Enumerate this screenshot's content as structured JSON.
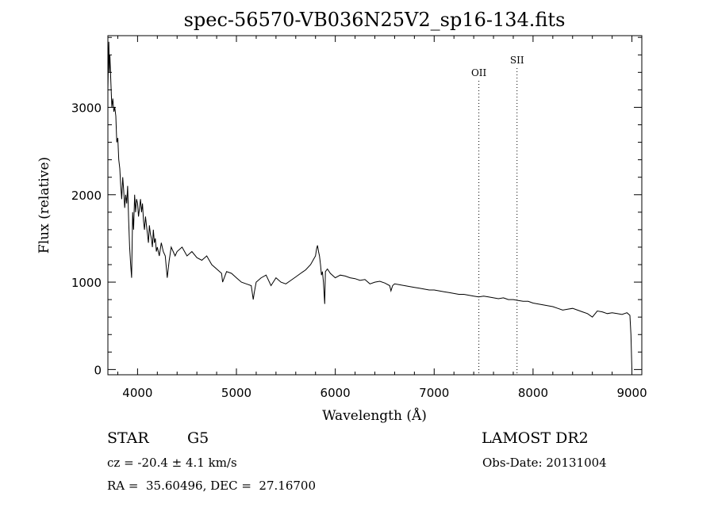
{
  "chart_data": {
    "type": "line",
    "title": "spec-56570-VB036N25V2_sp16-134.fits",
    "xlabel": "Wavelength (Å)",
    "ylabel": "Flux (relative)",
    "xlim": [
      3700,
      9100
    ],
    "ylim": [
      -60,
      3820
    ],
    "x_ticks": [
      4000,
      5000,
      6000,
      7000,
      8000,
      9000
    ],
    "y_ticks": [
      0,
      1000,
      2000,
      3000
    ],
    "grid": false,
    "series": [
      {
        "x": [
          3700,
          3705,
          3710,
          3715,
          3720,
          3730,
          3740,
          3750,
          3760,
          3770,
          3780,
          3790,
          3800,
          3810,
          3820,
          3830,
          3840,
          3850,
          3860,
          3870,
          3880,
          3890,
          3900,
          3910,
          3920,
          3930,
          3940,
          3950,
          3960,
          3970,
          3980,
          3990,
          4000,
          4010,
          4020,
          4030,
          4040,
          4050,
          4060,
          4070,
          4080,
          4090,
          4100,
          4110,
          4120,
          4130,
          4140,
          4150,
          4160,
          4170,
          4180,
          4190,
          4200,
          4220,
          4240,
          4260,
          4280,
          4300,
          4320,
          4340,
          4360,
          4380,
          4400,
          4450,
          4500,
          4550,
          4600,
          4650,
          4700,
          4750,
          4800,
          4850,
          4860,
          4900,
          4950,
          5000,
          5050,
          5100,
          5150,
          5170,
          5180,
          5200,
          5250,
          5300,
          5350,
          5400,
          5450,
          5500,
          5550,
          5600,
          5650,
          5700,
          5750,
          5780,
          5800,
          5810,
          5820,
          5830,
          5840,
          5850,
          5860,
          5870,
          5880,
          5893,
          5900,
          5920,
          5950,
          6000,
          6050,
          6100,
          6150,
          6200,
          6250,
          6300,
          6350,
          6400,
          6450,
          6500,
          6550,
          6563,
          6580,
          6600,
          6650,
          6700,
          6750,
          6800,
          6850,
          6900,
          6950,
          7000,
          7050,
          7100,
          7150,
          7200,
          7250,
          7300,
          7350,
          7400,
          7450,
          7500,
          7550,
          7600,
          7650,
          7700,
          7750,
          7800,
          7850,
          7900,
          7950,
          8000,
          8050,
          8100,
          8150,
          8200,
          8250,
          8300,
          8350,
          8400,
          8450,
          8500,
          8550,
          8600,
          8650,
          8700,
          8750,
          8800,
          8850,
          8900,
          8950,
          8980,
          8990,
          9000
        ],
        "y": [
          3200,
          3500,
          3750,
          3400,
          3600,
          3300,
          3000,
          3100,
          2950,
          3000,
          2900,
          2600,
          2650,
          2400,
          2300,
          2100,
          1950,
          2200,
          2050,
          1850,
          2000,
          1900,
          2100,
          1700,
          1400,
          1200,
          1050,
          1800,
          1600,
          2000,
          1800,
          1950,
          1900,
          1750,
          1850,
          1950,
          1800,
          1900,
          1700,
          1600,
          1750,
          1650,
          1550,
          1450,
          1650,
          1550,
          1500,
          1400,
          1600,
          1450,
          1500,
          1350,
          1400,
          1300,
          1450,
          1350,
          1300,
          1050,
          1250,
          1400,
          1350,
          1300,
          1350,
          1400,
          1300,
          1350,
          1280,
          1250,
          1300,
          1200,
          1150,
          1100,
          1000,
          1120,
          1100,
          1050,
          1000,
          980,
          960,
          800,
          880,
          1000,
          1050,
          1080,
          960,
          1050,
          1000,
          980,
          1020,
          1060,
          1100,
          1140,
          1200,
          1260,
          1300,
          1380,
          1420,
          1350,
          1300,
          1200,
          1080,
          1120,
          1000,
          750,
          1120,
          1150,
          1100,
          1050,
          1080,
          1070,
          1050,
          1040,
          1020,
          1030,
          980,
          1000,
          1010,
          990,
          960,
          900,
          960,
          980,
          970,
          960,
          950,
          940,
          930,
          920,
          910,
          910,
          900,
          890,
          880,
          870,
          860,
          860,
          850,
          840,
          830,
          840,
          830,
          820,
          810,
          820,
          800,
          800,
          790,
          780,
          780,
          760,
          750,
          740,
          730,
          720,
          700,
          680,
          690,
          700,
          680,
          660,
          640,
          600,
          670,
          660,
          640,
          650,
          640,
          630,
          650,
          620,
          400,
          0
        ],
        "color": "#000000"
      }
    ],
    "annotations": [
      {
        "label": "OII",
        "x": 7452
      },
      {
        "label": "SII",
        "x": 7838
      }
    ]
  },
  "info": {
    "object_class": "STAR",
    "subclass": "G5",
    "survey": "LAMOST DR2",
    "redshift": "cz = -20.4 ± 4.1 km/s",
    "obs_date": "Obs-Date: 20131004",
    "coords": "RA =  35.60496, DEC =  27.16700"
  }
}
